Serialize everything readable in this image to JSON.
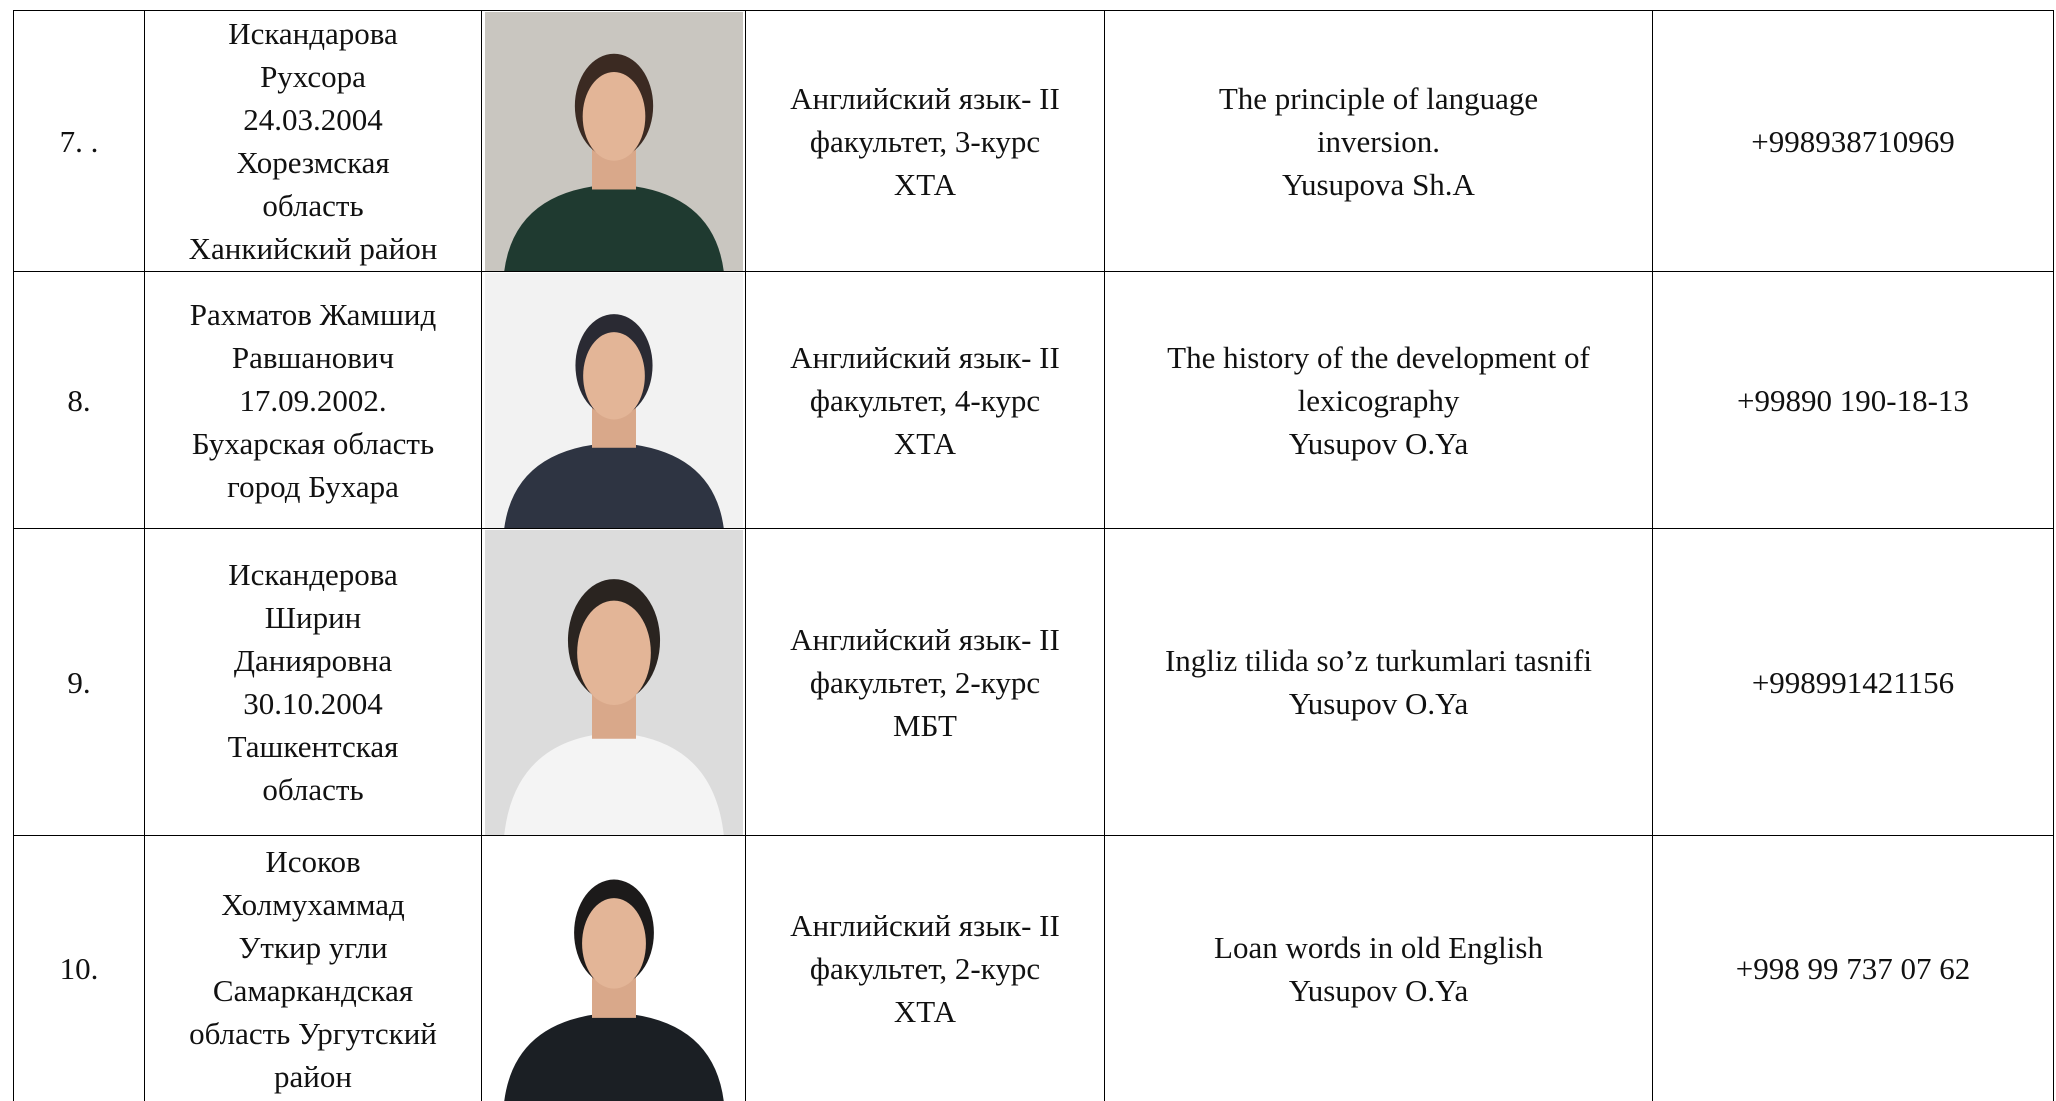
{
  "table": {
    "rows": [
      {
        "number": "7. .",
        "name": [
          "Искандарова",
          "Рухсора",
          "24.03.2004",
          "Хорезмская",
          "область",
          "Ханкийский район"
        ],
        "program": [
          "Английский язык- II",
          "факультет, 3-курс",
          "ХТА"
        ],
        "topic": [
          "The principle of language",
          "inversion.",
          "Yusupova Sh.A"
        ],
        "phone": "+998938710969"
      },
      {
        "number": "8.",
        "name": [
          "Рахматов Жамшид",
          "Равшанович",
          "17.09.2002.",
          "Бухарская область",
          "город Бухара"
        ],
        "program": [
          "Английский язык- II",
          "факультет, 4-курс",
          "ХТА"
        ],
        "topic": [
          "The history of the development of",
          "lexicography",
          "Yusupov O.Ya"
        ],
        "phone": "+99890 190-18-13"
      },
      {
        "number": "9.",
        "name": [
          "Искандерова",
          "Ширин",
          "Данияровна",
          "30.10.2004",
          "Ташкентская",
          "область"
        ],
        "program": [
          "Английский язык- II",
          "факультет, 2-курс",
          "МБТ"
        ],
        "topic": [
          "Ingliz tilida so’z turkumlari tasnifi",
          "Yusupov O.Ya"
        ],
        "phone": "+998991421156"
      },
      {
        "number": "10.",
        "name": [
          "Исоков",
          "Холмухаммад",
          "Уткир угли",
          "Самаркандская",
          "область Ургутский",
          "район"
        ],
        "program": [
          "Английский язык- II",
          "факультет, 2-курс",
          "ХТА"
        ],
        "topic": [
          "Loan words in old English",
          "Yusupov O.Ya"
        ],
        "phone": "+998 99 737 07 62"
      }
    ]
  }
}
